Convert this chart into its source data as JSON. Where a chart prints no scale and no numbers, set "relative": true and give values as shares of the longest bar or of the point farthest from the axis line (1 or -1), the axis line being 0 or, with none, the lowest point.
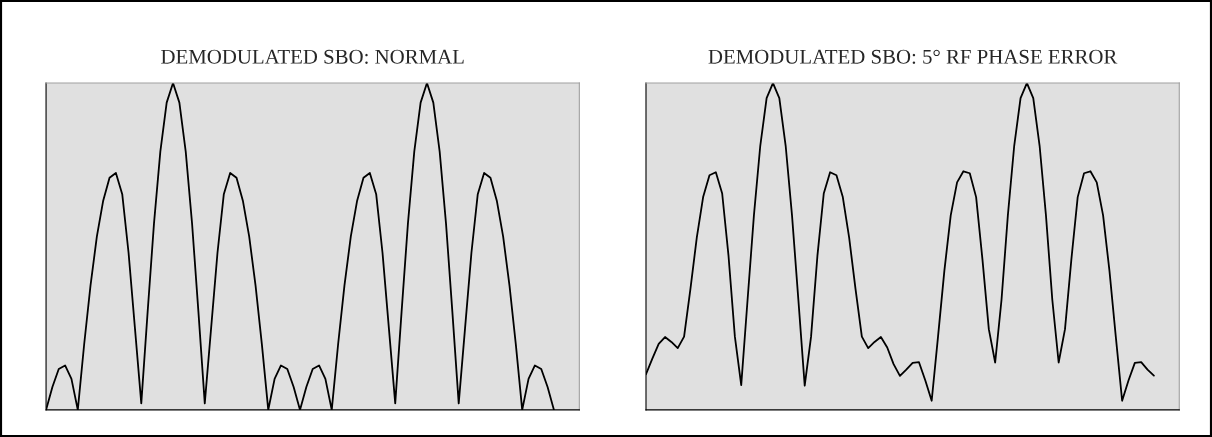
{
  "chart_data": [
    {
      "type": "line",
      "title": "DEMODULATED SBO: NORMAL",
      "relative": true,
      "categories": [
        null,
        null,
        null,
        null,
        null,
        null,
        null,
        null,
        null,
        null,
        null,
        null,
        null,
        null,
        null,
        null,
        null,
        null,
        null,
        null,
        null,
        null,
        null,
        null,
        null,
        null,
        null,
        null,
        null,
        null,
        null,
        null,
        null,
        null,
        null,
        null,
        null,
        null,
        null,
        null,
        null,
        null,
        null,
        null,
        null,
        null,
        null,
        null,
        null,
        null,
        null,
        null,
        null,
        null,
        null,
        null,
        null,
        null,
        null,
        null,
        null,
        null,
        null,
        null,
        null,
        null,
        null,
        null,
        null,
        null,
        null,
        null,
        null,
        null,
        null,
        null,
        null,
        null,
        null,
        null,
        null,
        null,
        null,
        null,
        null
      ],
      "series": [
        {
          "color": "#000000",
          "values": [
            0,
            0.07,
            0.125,
            0.136,
            0.095,
            0,
            0.2,
            0.38,
            0.53,
            0.64,
            0.71,
            0.725,
            0.66,
            0.48,
            0.25,
            0.02,
            0.3,
            0.57,
            0.79,
            0.94,
            1,
            0.94,
            0.79,
            0.57,
            0.3,
            0.02,
            0.25,
            0.48,
            0.66,
            0.725,
            0.71,
            0.64,
            0.53,
            0.38,
            0.2,
            0,
            0.095,
            0.136,
            0.125,
            0.07,
            0,
            0.07,
            0.125,
            0.136,
            0.095,
            0,
            0.2,
            0.38,
            0.53,
            0.64,
            0.71,
            0.725,
            0.66,
            0.48,
            0.25,
            0.02,
            0.3,
            0.57,
            0.79,
            0.94,
            1,
            0.94,
            0.79,
            0.57,
            0.3,
            0.02,
            0.25,
            0.48,
            0.66,
            0.725,
            0.71,
            0.64,
            0.53,
            0.38,
            0.2,
            0,
            0.095,
            0.136,
            0.125,
            0.07,
            0,
            null,
            null,
            null,
            null
          ]
        }
      ]
    },
    {
      "type": "line",
      "title": "DEMODULATED SBO: 5° RF PHASE ERROR",
      "relative": true,
      "categories": [
        null,
        null,
        null,
        null,
        null,
        null,
        null,
        null,
        null,
        null,
        null,
        null,
        null,
        null,
        null,
        null,
        null,
        null,
        null,
        null,
        null,
        null,
        null,
        null,
        null,
        null,
        null,
        null,
        null,
        null,
        null,
        null,
        null,
        null,
        null,
        null,
        null,
        null,
        null,
        null,
        null,
        null,
        null,
        null,
        null,
        null,
        null,
        null,
        null,
        null,
        null,
        null,
        null,
        null,
        null,
        null,
        null,
        null,
        null,
        null,
        null,
        null,
        null,
        null,
        null,
        null,
        null,
        null,
        null,
        null,
        null,
        null,
        null,
        null,
        null,
        null,
        null,
        null,
        null,
        null,
        null,
        null,
        null,
        null,
        null
      ],
      "series": [
        {
          "color": "#000000",
          "values": [
            0.109,
            0.157,
            0.202,
            0.223,
            0.208,
            0.189,
            0.224,
            0.37,
            0.527,
            0.651,
            0.718,
            0.727,
            0.662,
            0.471,
            0.224,
            0.076,
            0.337,
            0.595,
            0.808,
            0.954,
            1,
            0.954,
            0.808,
            0.595,
            0.337,
            0.074,
            0.224,
            0.471,
            0.662,
            0.727,
            0.718,
            0.651,
            0.527,
            0.37,
            0.224,
            0.189,
            0.208,
            0.223,
            0.191,
            0.14,
            0.104,
            0.123,
            0.144,
            0.146,
            0.09,
            0.028,
            0.224,
            0.426,
            0.595,
            0.696,
            0.73,
            0.724,
            0.651,
            0.46,
            0.247,
            0.145,
            0.337,
            0.595,
            0.808,
            0.954,
            1,
            0.954,
            0.808,
            0.595,
            0.337,
            0.145,
            0.247,
            0.46,
            0.651,
            0.724,
            0.73,
            0.696,
            0.595,
            0.426,
            0.224,
            0.028,
            0.09,
            0.144,
            0.146,
            0.123,
            0.105,
            null,
            null,
            null,
            null
          ]
        }
      ]
    }
  ]
}
